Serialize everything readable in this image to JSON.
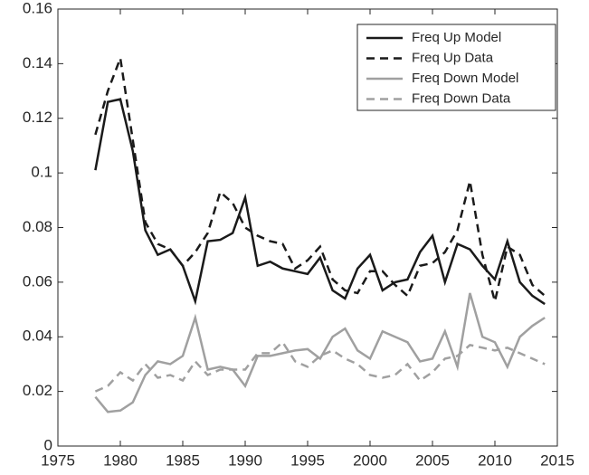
{
  "chart_data": {
    "type": "line",
    "x": [
      1978,
      1979,
      1980,
      1981,
      1982,
      1983,
      1984,
      1985,
      1986,
      1987,
      1988,
      1989,
      1990,
      1991,
      1992,
      1993,
      1994,
      1995,
      1996,
      1997,
      1998,
      1999,
      2000,
      2001,
      2002,
      2003,
      2004,
      2005,
      2006,
      2007,
      2008,
      2009,
      2010,
      2011,
      2012,
      2013,
      2014
    ],
    "series": [
      {
        "name": "Freq Up Model",
        "color": "#1a1a1a",
        "dash": "solid",
        "values": [
          0.101,
          0.126,
          0.127,
          0.108,
          0.079,
          0.07,
          0.072,
          0.066,
          0.053,
          0.075,
          0.0755,
          0.078,
          0.091,
          0.066,
          0.0675,
          0.065,
          0.064,
          0.063,
          0.069,
          0.057,
          0.054,
          0.065,
          0.07,
          0.057,
          0.06,
          0.061,
          0.071,
          0.077,
          0.06,
          0.074,
          0.072,
          0.066,
          0.061,
          0.075,
          0.06,
          0.055,
          0.052
        ]
      },
      {
        "name": "Freq Up Data",
        "color": "#1a1a1a",
        "dash": "dashed",
        "values": [
          0.114,
          0.13,
          0.142,
          0.112,
          0.082,
          0.074,
          0.072,
          0.066,
          0.071,
          0.078,
          0.093,
          0.089,
          0.08,
          0.077,
          0.075,
          0.074,
          0.065,
          0.068,
          0.073,
          0.061,
          0.057,
          0.056,
          0.064,
          0.064,
          0.059,
          0.055,
          0.066,
          0.067,
          0.071,
          0.079,
          0.097,
          0.07,
          0.053,
          0.073,
          0.07,
          0.059,
          0.055
        ]
      },
      {
        "name": "Freq Down Model",
        "color": "#a0a0a0",
        "dash": "solid",
        "values": [
          0.018,
          0.0125,
          0.013,
          0.016,
          0.026,
          0.031,
          0.03,
          0.033,
          0.047,
          0.028,
          0.029,
          0.028,
          0.022,
          0.033,
          0.033,
          0.034,
          0.035,
          0.0355,
          0.032,
          0.04,
          0.043,
          0.035,
          0.032,
          0.042,
          0.04,
          0.038,
          0.031,
          0.032,
          0.042,
          0.029,
          0.056,
          0.04,
          0.038,
          0.029,
          0.04,
          0.044,
          0.047
        ]
      },
      {
        "name": "Freq Down Data",
        "color": "#a0a0a0",
        "dash": "dashed",
        "values": [
          0.02,
          0.022,
          0.027,
          0.024,
          0.03,
          0.025,
          0.026,
          0.024,
          0.031,
          0.026,
          0.028,
          0.028,
          0.028,
          0.034,
          0.034,
          0.038,
          0.031,
          0.029,
          0.033,
          0.035,
          0.032,
          0.03,
          0.026,
          0.025,
          0.026,
          0.03,
          0.024,
          0.027,
          0.032,
          0.033,
          0.037,
          0.036,
          0.035,
          0.036,
          0.034,
          0.032,
          0.03
        ]
      }
    ],
    "xlim": [
      1975,
      2015
    ],
    "xticks": [
      1975,
      1980,
      1985,
      1990,
      1995,
      2000,
      2005,
      2010,
      2015
    ],
    "ylim": [
      0,
      0.16
    ],
    "yticks": [
      0,
      0.02,
      0.04,
      0.06,
      0.08,
      0.1,
      0.12,
      0.14,
      0.16
    ],
    "legend": "top-right"
  }
}
